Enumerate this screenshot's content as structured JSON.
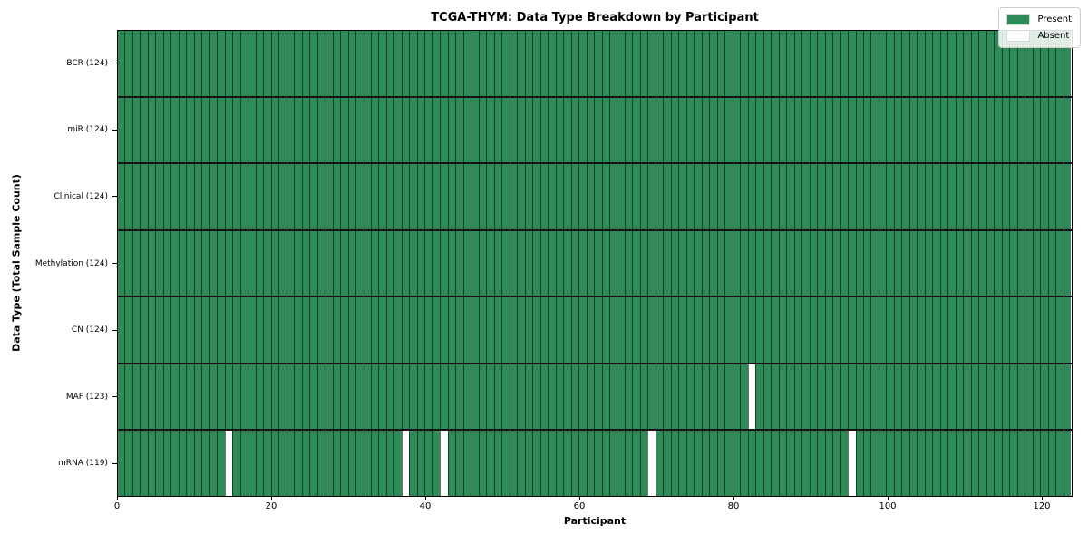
{
  "chart_data": {
    "type": "heatmap",
    "title": "TCGA-THYM: Data Type Breakdown by Participant",
    "xlabel": "Participant",
    "ylabel": "Data Type (Total Sample Count)",
    "n_participants": 124,
    "x_axis_range": [
      0,
      124
    ],
    "x_ticks": [
      0,
      20,
      40,
      60,
      80,
      100,
      120
    ],
    "x_tick_labels": [
      "0",
      "20",
      "40",
      "60",
      "80",
      "100",
      "120"
    ],
    "grid": "cell borders only",
    "legend_position": "upper right",
    "legend": [
      {
        "label": "Present",
        "color": "#2e8b57"
      },
      {
        "label": "Absent",
        "color": "#ffffff"
      }
    ],
    "rows": [
      {
        "label": "BCR (124)",
        "data_type": "BCR",
        "present_count": 124,
        "absent_participants": []
      },
      {
        "label": "miR (124)",
        "data_type": "miR",
        "present_count": 124,
        "absent_participants": []
      },
      {
        "label": "Clinical (124)",
        "data_type": "Clinical",
        "present_count": 124,
        "absent_participants": []
      },
      {
        "label": "Methylation (124)",
        "data_type": "Methylation",
        "present_count": 124,
        "absent_participants": []
      },
      {
        "label": "CN (124)",
        "data_type": "CN",
        "present_count": 124,
        "absent_participants": []
      },
      {
        "label": "MAF (123)",
        "data_type": "MAF",
        "present_count": 123,
        "absent_participants": [
          82
        ]
      },
      {
        "label": "mRNA (119)",
        "data_type": "mRNA",
        "present_count": 119,
        "absent_participants": [
          14,
          37,
          42,
          69,
          95
        ]
      }
    ],
    "colors": {
      "present": "#2e8b57",
      "absent": "#ffffff",
      "cell_border": "rgba(0,0,0,0.55)",
      "row_border": "#141414",
      "spine": "#000000",
      "background": "#ffffff"
    }
  }
}
